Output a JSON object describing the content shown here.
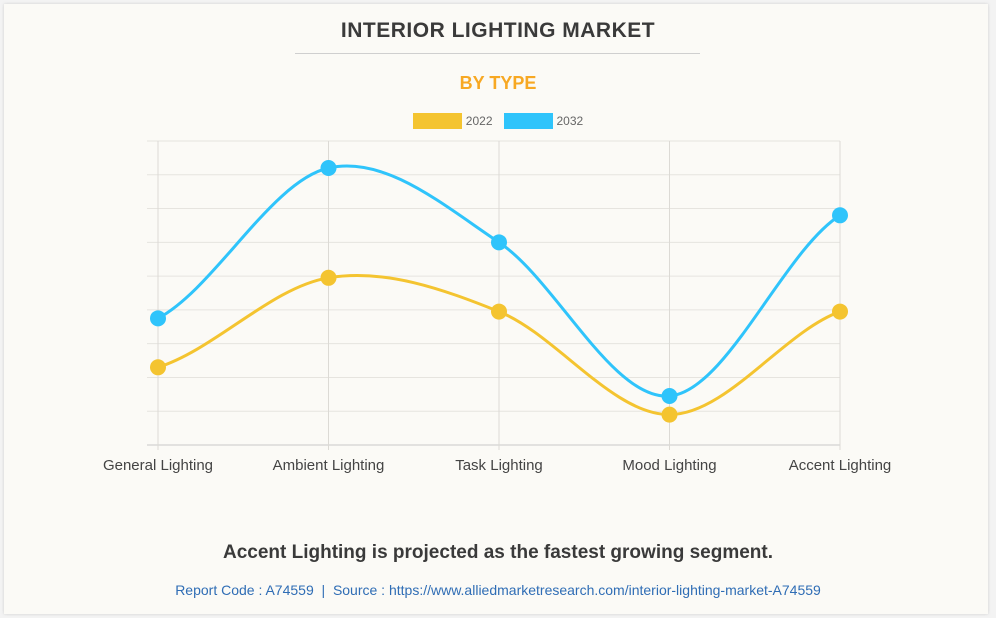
{
  "header": {
    "title": "INTERIOR LIGHTING MARKET",
    "subtitle": "BY TYPE"
  },
  "colors": {
    "series_2022": "#f4c430",
    "series_2032": "#2fc4fb",
    "subtitle": "#f7a823",
    "link": "#2f6db5"
  },
  "chart_data": {
    "type": "line",
    "title": "INTERIOR LIGHTING MARKET",
    "subtitle": "BY TYPE",
    "xlabel": "",
    "ylabel": "",
    "categories": [
      "General Lighting",
      "Ambient Lighting",
      "Task Lighting",
      "Mood Lighting",
      "Accent Lighting"
    ],
    "series": [
      {
        "name": "2022",
        "color": "#f4c430",
        "values": [
          2.3,
          4.95,
          3.95,
          0.9,
          3.95
        ]
      },
      {
        "name": "2032",
        "color": "#2fc4fb",
        "values": [
          3.75,
          8.2,
          6.0,
          1.45,
          6.8
        ]
      }
    ],
    "ylim": [
      0,
      9
    ],
    "y_gridlines": 9,
    "y_tick_labels_shown": false,
    "grid": true,
    "smooth": true,
    "legend_position": "top-center"
  },
  "footer": {
    "headline": "Accent Lighting is projected as the fastest growing segment.",
    "report_code": "Report Code : A74559",
    "separator": "|",
    "source": "Source : https://www.alliedmarketresearch.com/interior-lighting-market-A74559"
  }
}
